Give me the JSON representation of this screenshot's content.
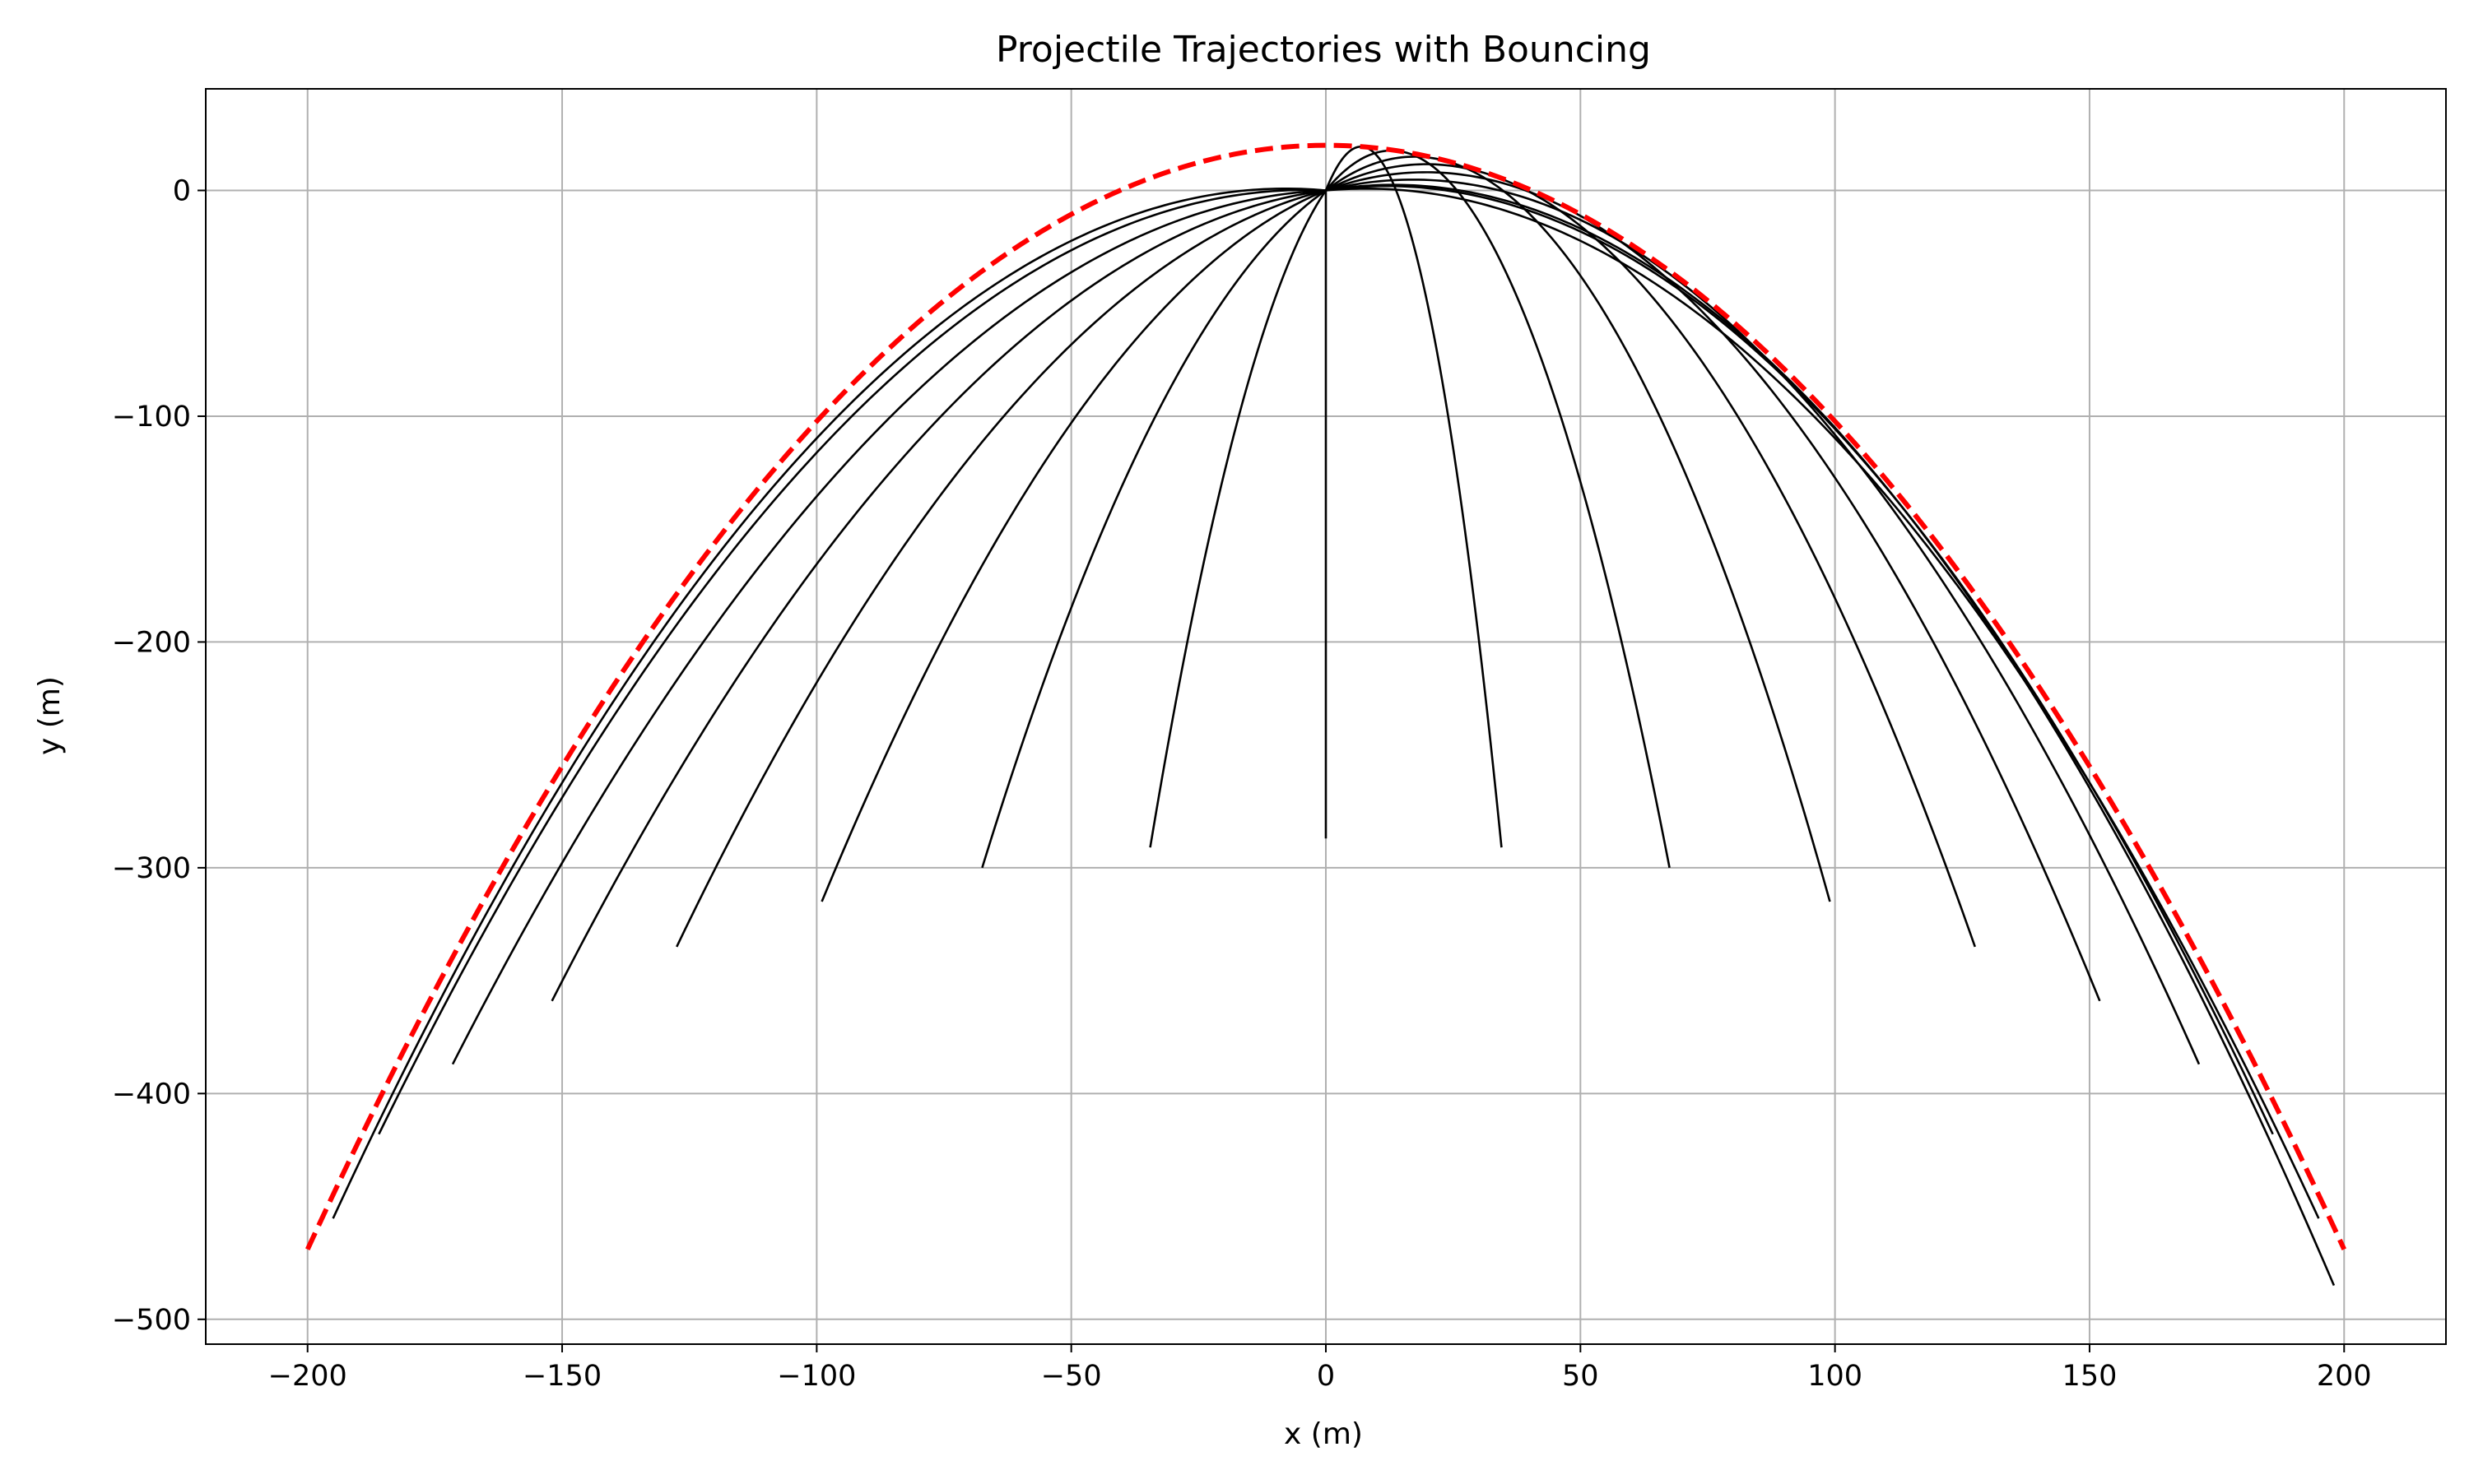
{
  "chart_data": {
    "type": "line",
    "title": "Projectile Trajectories with Bouncing",
    "xlabel": "x (m)",
    "ylabel": "y (m)",
    "xlim": [
      -220,
      220
    ],
    "ylim": [
      -511,
      45
    ],
    "grid": true,
    "xticks": [
      -200,
      -150,
      -100,
      -50,
      0,
      50,
      100,
      150,
      200
    ],
    "xtick_labels": [
      "−200",
      "−150",
      "−100",
      "−50",
      "0",
      "50",
      "100",
      "150",
      "200"
    ],
    "yticks": [
      0,
      -100,
      -200,
      -300,
      -400,
      -500
    ],
    "ytick_labels": [
      "0",
      "−100",
      "−200",
      "−300",
      "−400",
      "−500"
    ],
    "colors": {
      "trajectory": "#000000",
      "envelope": "#ff0000",
      "grid": "#b0b0b0"
    },
    "trajectory_endpoints": [
      {
        "x_end": 0,
        "y_end": -287
      },
      {
        "x_end": 34.5,
        "y_end": -291
      },
      {
        "x_end": -34.5,
        "y_end": -291
      },
      {
        "x_end": 67.5,
        "y_end": -300
      },
      {
        "x_end": -67.5,
        "y_end": -300
      },
      {
        "x_end": 99,
        "y_end": -315
      },
      {
        "x_end": -99,
        "y_end": -315
      },
      {
        "x_end": 127.5,
        "y_end": -335
      },
      {
        "x_end": -127.5,
        "y_end": -335
      },
      {
        "x_end": 152,
        "y_end": -359
      },
      {
        "x_end": -152,
        "y_end": -359
      },
      {
        "x_end": 171.5,
        "y_end": -387
      },
      {
        "x_end": -171.5,
        "y_end": -387
      },
      {
        "x_end": 186,
        "y_end": -418
      },
      {
        "x_end": -186,
        "y_end": -418
      },
      {
        "x_end": 195,
        "y_end": -453
      },
      {
        "x_end": -195,
        "y_end": -453
      },
      {
        "x_end": 198,
        "y_end": -485
      }
    ],
    "envelope": {
      "peak_y": 20,
      "x_range": [
        -200,
        200
      ],
      "y_end": -469
    }
  }
}
